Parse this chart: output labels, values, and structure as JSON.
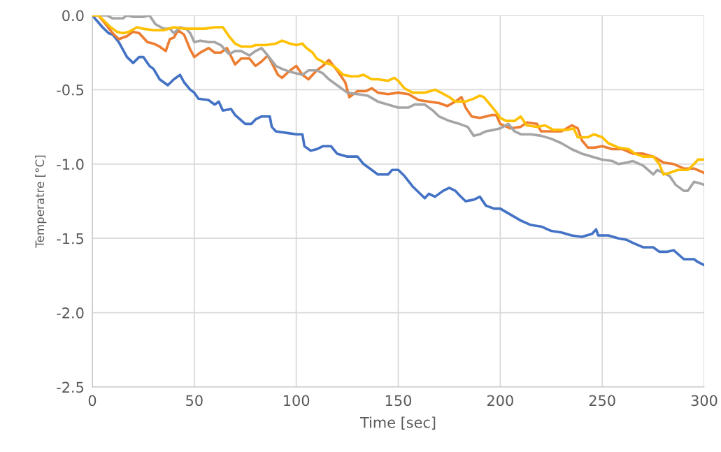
{
  "chart_data": {
    "type": "line",
    "xlabel": "Time [sec]",
    "ylabel": "Temperatre [°C]",
    "xlim": [
      0,
      300
    ],
    "xticks": [
      0,
      50,
      100,
      150,
      200,
      250,
      300
    ],
    "ylim": [
      -2.5,
      0
    ],
    "yticks": [
      {
        "value": -2.5,
        "label": "-2.5"
      },
      {
        "value": -2.0,
        "label": "-2.0"
      },
      {
        "value": -1.5,
        "label": "-1.5"
      },
      {
        "value": -1.0,
        "label": "-1.0"
      },
      {
        "value": -0.5,
        "label": "-0.5"
      },
      {
        "value": 0,
        "label": "0.0"
      }
    ],
    "grid": true,
    "marker": "none",
    "line_style": "solid",
    "series": [
      {
        "color": "#4472c4",
        "x": [
          0,
          5,
          8,
          10,
          13,
          17,
          20,
          23,
          25,
          28,
          30,
          33,
          37,
          40,
          43,
          45,
          48,
          50,
          52,
          57,
          60,
          62,
          64,
          68,
          70,
          75,
          78,
          80,
          83,
          87,
          88,
          90,
          95,
          100,
          103,
          104,
          107,
          110,
          113,
          117,
          120,
          125,
          130,
          133,
          137,
          140,
          145,
          147,
          150,
          153,
          157,
          160,
          163,
          165,
          168,
          172,
          175,
          178,
          180,
          183,
          187,
          190,
          193,
          197,
          200,
          205,
          210,
          215,
          220,
          225,
          230,
          235,
          240,
          245,
          247,
          248,
          253,
          258,
          262,
          265,
          270,
          275,
          278,
          282,
          285,
          290,
          295,
          297,
          300
        ],
        "values": [
          0,
          -0.08,
          -0.12,
          -0.13,
          -0.18,
          -0.28,
          -0.32,
          -0.28,
          -0.28,
          -0.34,
          -0.36,
          -0.43,
          -0.47,
          -0.43,
          -0.4,
          -0.45,
          -0.5,
          -0.52,
          -0.56,
          -0.57,
          -0.6,
          -0.58,
          -0.64,
          -0.63,
          -0.67,
          -0.73,
          -0.73,
          -0.7,
          -0.68,
          -0.68,
          -0.75,
          -0.78,
          -0.79,
          -0.8,
          -0.8,
          -0.88,
          -0.91,
          -0.9,
          -0.88,
          -0.88,
          -0.93,
          -0.95,
          -0.95,
          -1.0,
          -1.04,
          -1.07,
          -1.07,
          -1.04,
          -1.04,
          -1.08,
          -1.15,
          -1.19,
          -1.23,
          -1.2,
          -1.22,
          -1.18,
          -1.16,
          -1.18,
          -1.21,
          -1.25,
          -1.24,
          -1.22,
          -1.28,
          -1.3,
          -1.3,
          -1.34,
          -1.38,
          -1.41,
          -1.42,
          -1.45,
          -1.46,
          -1.48,
          -1.49,
          -1.47,
          -1.44,
          -1.48,
          -1.48,
          -1.5,
          -1.51,
          -1.53,
          -1.56,
          -1.56,
          -1.59,
          -1.59,
          -1.58,
          -1.64,
          -1.64,
          -1.66,
          -1.68
        ]
      },
      {
        "color": "#ed7d31",
        "x": [
          0,
          3,
          6,
          10,
          13,
          17,
          20,
          23,
          27,
          30,
          33,
          36,
          38,
          40,
          42,
          45,
          48,
          50,
          53,
          57,
          60,
          63,
          66,
          70,
          73,
          77,
          80,
          83,
          86,
          88,
          91,
          93,
          97,
          100,
          103,
          106,
          110,
          113,
          116,
          120,
          124,
          126,
          130,
          134,
          137,
          140,
          145,
          150,
          155,
          160,
          165,
          170,
          174,
          178,
          181,
          183,
          186,
          190,
          193,
          196,
          198,
          200,
          205,
          210,
          213,
          218,
          220,
          225,
          230,
          235,
          238,
          240,
          243,
          246,
          250,
          255,
          260,
          265,
          270,
          275,
          280,
          285,
          290,
          295,
          300
        ],
        "values": [
          0,
          0,
          -0.05,
          -0.12,
          -0.16,
          -0.14,
          -0.11,
          -0.12,
          -0.18,
          -0.19,
          -0.21,
          -0.24,
          -0.16,
          -0.15,
          -0.1,
          -0.13,
          -0.23,
          -0.28,
          -0.25,
          -0.22,
          -0.25,
          -0.25,
          -0.22,
          -0.33,
          -0.29,
          -0.29,
          -0.34,
          -0.31,
          -0.27,
          -0.32,
          -0.4,
          -0.42,
          -0.37,
          -0.34,
          -0.4,
          -0.43,
          -0.37,
          -0.34,
          -0.3,
          -0.37,
          -0.45,
          -0.55,
          -0.51,
          -0.51,
          -0.49,
          -0.52,
          -0.53,
          -0.52,
          -0.53,
          -0.57,
          -0.58,
          -0.59,
          -0.61,
          -0.58,
          -0.55,
          -0.62,
          -0.68,
          -0.69,
          -0.68,
          -0.67,
          -0.67,
          -0.73,
          -0.76,
          -0.75,
          -0.72,
          -0.73,
          -0.78,
          -0.78,
          -0.78,
          -0.74,
          -0.76,
          -0.84,
          -0.89,
          -0.89,
          -0.88,
          -0.9,
          -0.9,
          -0.93,
          -0.93,
          -0.95,
          -0.99,
          -1.0,
          -1.03,
          -1.03,
          -1.06
        ]
      },
      {
        "color": "#a5a5a5",
        "x": [
          0,
          7,
          10,
          15,
          17,
          20,
          25,
          28,
          31,
          35,
          38,
          40,
          43,
          46,
          48,
          50,
          53,
          57,
          60,
          63,
          67,
          70,
          73,
          77,
          80,
          83,
          86,
          90,
          93,
          97,
          100,
          103,
          106,
          110,
          113,
          116,
          120,
          125,
          130,
          135,
          140,
          145,
          150,
          155,
          158,
          163,
          167,
          170,
          175,
          180,
          184,
          187,
          190,
          193,
          197,
          200,
          204,
          207,
          210,
          215,
          220,
          225,
          230,
          235,
          240,
          245,
          250,
          255,
          258,
          262,
          265,
          270,
          275,
          277,
          280,
          283,
          286,
          290,
          292,
          295,
          298,
          300
        ],
        "values": [
          0,
          0,
          -0.02,
          -0.02,
          0,
          -0.01,
          -0.01,
          0,
          -0.06,
          -0.09,
          -0.09,
          -0.12,
          -0.08,
          -0.09,
          -0.12,
          -0.18,
          -0.17,
          -0.18,
          -0.18,
          -0.2,
          -0.26,
          -0.24,
          -0.24,
          -0.27,
          -0.24,
          -0.22,
          -0.27,
          -0.34,
          -0.36,
          -0.38,
          -0.39,
          -0.4,
          -0.37,
          -0.37,
          -0.39,
          -0.43,
          -0.47,
          -0.52,
          -0.53,
          -0.54,
          -0.58,
          -0.6,
          -0.62,
          -0.62,
          -0.6,
          -0.6,
          -0.64,
          -0.68,
          -0.71,
          -0.73,
          -0.75,
          -0.81,
          -0.8,
          -0.78,
          -0.77,
          -0.76,
          -0.73,
          -0.78,
          -0.8,
          -0.8,
          -0.81,
          -0.83,
          -0.86,
          -0.9,
          -0.93,
          -0.95,
          -0.97,
          -0.98,
          -1.0,
          -0.99,
          -0.98,
          -1.01,
          -1.07,
          -1.04,
          -1.06,
          -1.08,
          -1.14,
          -1.18,
          -1.18,
          -1.12,
          -1.13,
          -1.14
        ]
      },
      {
        "color": "#ffc000",
        "x": [
          0,
          3,
          6,
          9,
          12,
          15,
          18,
          22,
          25,
          30,
          35,
          40,
          45,
          50,
          55,
          60,
          64,
          67,
          70,
          73,
          78,
          80,
          85,
          90,
          93,
          97,
          100,
          103,
          105,
          108,
          110,
          114,
          117,
          120,
          123,
          127,
          130,
          133,
          137,
          140,
          145,
          148,
          150,
          153,
          157,
          163,
          168,
          171,
          175,
          178,
          183,
          187,
          190,
          192,
          195,
          198,
          200,
          203,
          207,
          210,
          213,
          218,
          222,
          226,
          230,
          233,
          236,
          238,
          243,
          246,
          250,
          253,
          258,
          263,
          266,
          270,
          275,
          278,
          280,
          283,
          287,
          292,
          295,
          297,
          300
        ],
        "values": [
          0,
          0,
          -0.04,
          -0.08,
          -0.11,
          -0.12,
          -0.11,
          -0.08,
          -0.09,
          -0.1,
          -0.1,
          -0.08,
          -0.09,
          -0.09,
          -0.09,
          -0.08,
          -0.08,
          -0.14,
          -0.19,
          -0.21,
          -0.21,
          -0.2,
          -0.2,
          -0.19,
          -0.17,
          -0.19,
          -0.2,
          -0.19,
          -0.22,
          -0.25,
          -0.29,
          -0.32,
          -0.33,
          -0.36,
          -0.4,
          -0.41,
          -0.41,
          -0.4,
          -0.43,
          -0.43,
          -0.44,
          -0.42,
          -0.44,
          -0.49,
          -0.52,
          -0.52,
          -0.5,
          -0.52,
          -0.55,
          -0.58,
          -0.58,
          -0.56,
          -0.54,
          -0.55,
          -0.6,
          -0.65,
          -0.69,
          -0.71,
          -0.71,
          -0.68,
          -0.74,
          -0.75,
          -0.74,
          -0.77,
          -0.77,
          -0.77,
          -0.76,
          -0.82,
          -0.82,
          -0.8,
          -0.82,
          -0.86,
          -0.89,
          -0.9,
          -0.93,
          -0.95,
          -0.95,
          -1.0,
          -1.07,
          -1.06,
          -1.04,
          -1.04,
          -1.0,
          -0.97,
          -0.97
        ]
      }
    ]
  }
}
